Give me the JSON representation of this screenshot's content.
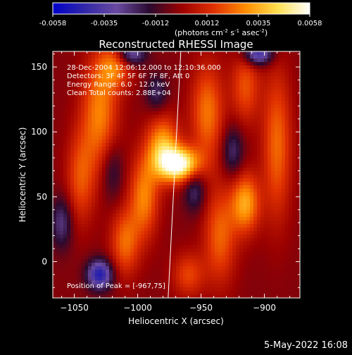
{
  "colorbar": {
    "ticks": [
      "-0.0058",
      "-0.0035",
      "-0.0012",
      "0.0012",
      "0.0035",
      "0.0058"
    ],
    "unit_main": "(photons cm",
    "unit_sup1": "-2",
    "unit_mid": " s",
    "unit_sup2": "-1",
    "unit_mid2": " asec",
    "unit_sup3": "-2",
    "unit_end": ")"
  },
  "chart_data": {
    "type": "heatmap",
    "title": "Reconstructed RHESSI Image",
    "xlabel": "Heliocentric X (arcsec)",
    "ylabel": "Heliocentric Y (arcsec)",
    "xlim": [
      -1067,
      -872
    ],
    "ylim": [
      -28,
      162
    ],
    "xticks": [
      -1050,
      -1000,
      -950,
      -900
    ],
    "xtick_labels": [
      "−1050",
      "−1000",
      "−950",
      "−900"
    ],
    "yticks": [
      0,
      50,
      100,
      150
    ],
    "ytick_labels": [
      "0",
      "50",
      "100",
      "150"
    ],
    "zlim": [
      -0.0058,
      0.0058
    ],
    "colormap": [
      "#0000c8",
      "#3228a8",
      "#6a4aa0",
      "#2a0a30",
      "#9a0000",
      "#e03000",
      "#ff8c00",
      "#ffe050",
      "#ffffff"
    ],
    "annotations": [
      "28-Dec-2004 12:06:12.000 to 12:10:36.000",
      "Detectors: 3F 4F 5F 6F 7F 8F, Att 0",
      "Energy Range: 6.0 - 12.0 keV",
      "Clean     Total counts: 2.88E+04"
    ],
    "peak_label": "Position of Peak = [-967,75]",
    "peak": [
      -967,
      75
    ],
    "limb_line": [
      [
        -966,
        162
      ],
      [
        -976,
        -28
      ]
    ],
    "sources": [
      {
        "x": -967,
        "y": 75,
        "amp": 0.006,
        "sx": 11,
        "sy": 9
      },
      {
        "x": -980,
        "y": 88,
        "amp": 0.0038,
        "sx": 9,
        "sy": 16
      },
      {
        "x": -995,
        "y": 50,
        "amp": 0.003,
        "sx": 8,
        "sy": 22
      },
      {
        "x": -1010,
        "y": 15,
        "amp": 0.0026,
        "sx": 8,
        "sy": 18
      },
      {
        "x": -1030,
        "y": 115,
        "amp": 0.003,
        "sx": 10,
        "sy": 30
      },
      {
        "x": -1045,
        "y": 65,
        "amp": 0.0022,
        "sx": 8,
        "sy": 25
      },
      {
        "x": -1018,
        "y": 150,
        "amp": 0.0025,
        "sx": 9,
        "sy": 12
      },
      {
        "x": -945,
        "y": 115,
        "amp": 0.0028,
        "sx": 9,
        "sy": 26
      },
      {
        "x": -935,
        "y": 20,
        "amp": 0.0025,
        "sx": 9,
        "sy": 26
      },
      {
        "x": -915,
        "y": 45,
        "amp": 0.0036,
        "sx": 8,
        "sy": 16
      },
      {
        "x": -915,
        "y": 135,
        "amp": 0.0022,
        "sx": 8,
        "sy": 20
      },
      {
        "x": -890,
        "y": 90,
        "amp": 0.0026,
        "sx": 8,
        "sy": 40
      },
      {
        "x": -960,
        "y": -10,
        "amp": 0.002,
        "sx": 9,
        "sy": 12
      },
      {
        "x": -1030,
        "y": -10,
        "amp": -0.0045,
        "sx": 7,
        "sy": 8
      },
      {
        "x": -905,
        "y": 160,
        "amp": -0.004,
        "sx": 8,
        "sy": 6
      },
      {
        "x": -1005,
        "y": 160,
        "amp": -0.003,
        "sx": 8,
        "sy": 6
      },
      {
        "x": -1060,
        "y": 30,
        "amp": -0.0022,
        "sx": 6,
        "sy": 14
      },
      {
        "x": -955,
        "y": 55,
        "amp": -0.002,
        "sx": 6,
        "sy": 12
      },
      {
        "x": -925,
        "y": 85,
        "amp": -0.002,
        "sx": 6,
        "sy": 14
      },
      {
        "x": -1020,
        "y": 70,
        "amp": -0.0015,
        "sx": 6,
        "sy": 16
      },
      {
        "x": -985,
        "y": 130,
        "amp": -0.0018,
        "sx": 6,
        "sy": 10
      }
    ]
  },
  "footer": {
    "timestamp": "5-May-2022 16:08"
  }
}
